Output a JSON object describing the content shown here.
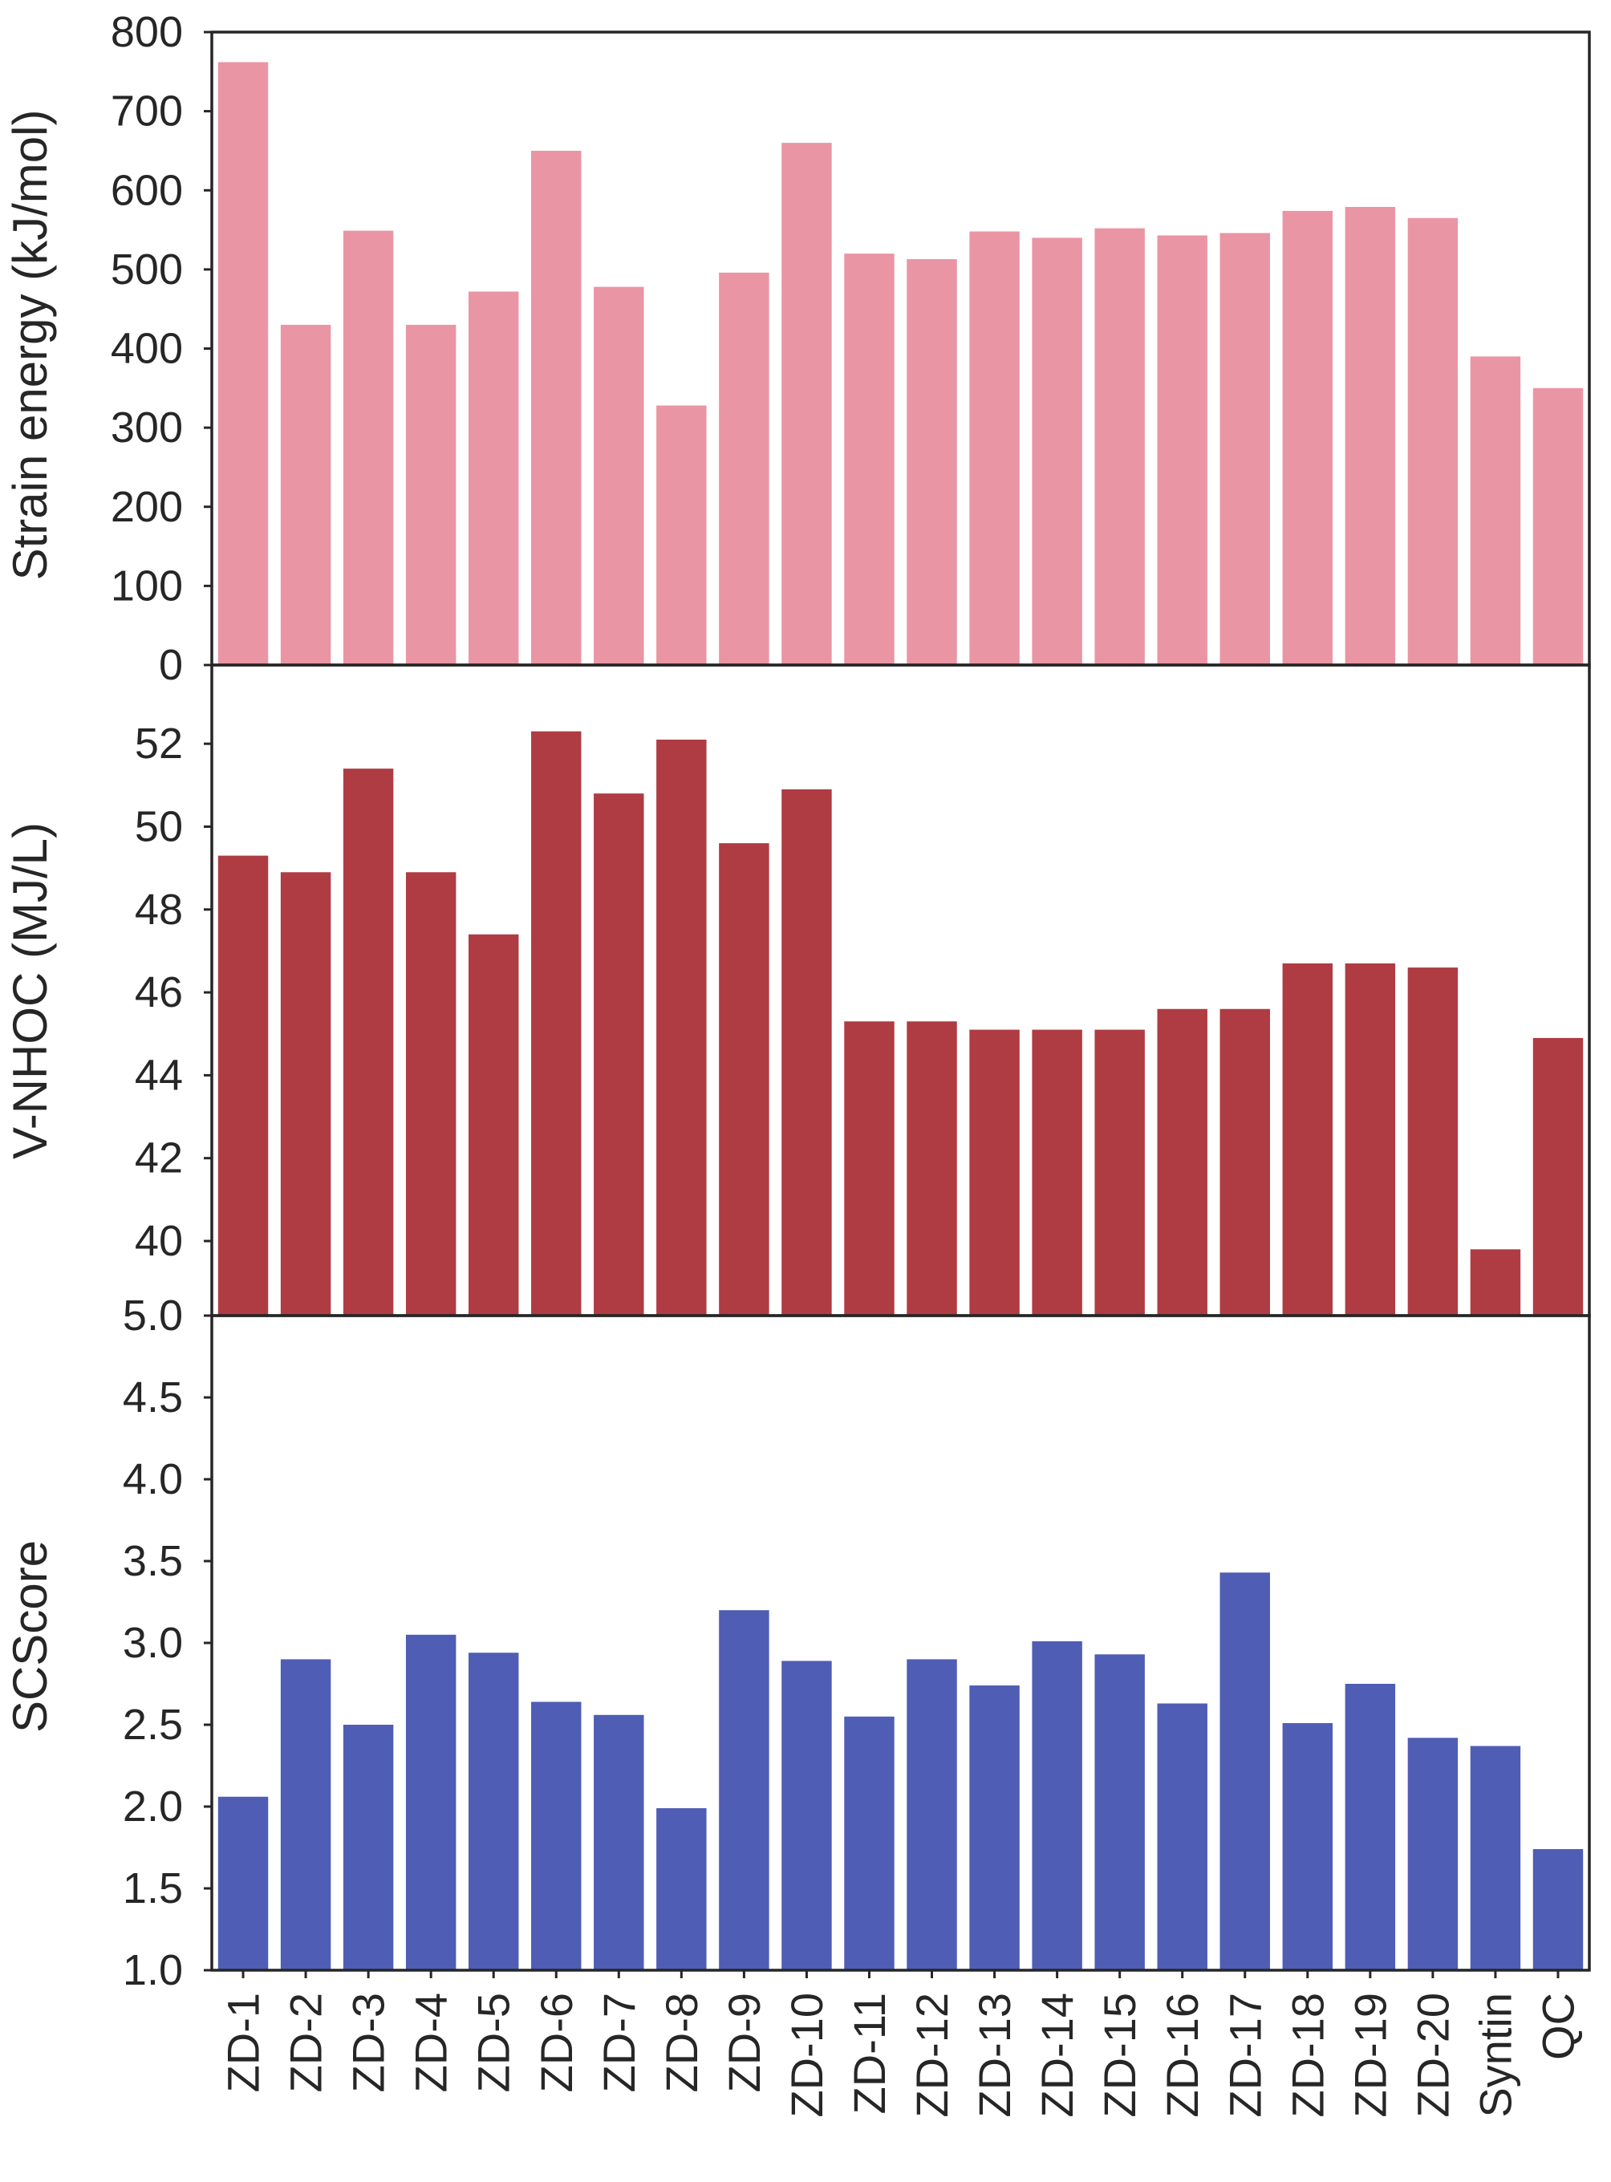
{
  "chart_data": [
    {
      "type": "bar",
      "title": "",
      "xlabel": "",
      "ylabel": "Strain energy (kJ/mol)",
      "ylim": [
        0,
        800
      ],
      "yticks": [
        "0",
        "100",
        "200",
        "300",
        "400",
        "500",
        "600",
        "700",
        "800"
      ],
      "color": "#EA95A4",
      "categories": [
        "ZD-1",
        "ZD-2",
        "ZD-3",
        "ZD-4",
        "ZD-5",
        "ZD-6",
        "ZD-7",
        "ZD-8",
        "ZD-9",
        "ZD-10",
        "ZD-11",
        "ZD-12",
        "ZD-13",
        "ZD-14",
        "ZD-15",
        "ZD-16",
        "ZD-17",
        "ZD-18",
        "ZD-19",
        "ZD-20",
        "Syntin",
        "QC"
      ],
      "values": [
        762,
        430,
        549,
        430,
        472,
        650,
        478,
        328,
        496,
        660,
        520,
        513,
        548,
        540,
        552,
        543,
        546,
        574,
        579,
        565,
        390,
        350
      ]
    },
    {
      "type": "bar",
      "title": "",
      "xlabel": "",
      "ylabel": "V-NHOC (MJ/L)",
      "ylim": [
        38.2,
        53.9
      ],
      "yticks": [
        "40",
        "42",
        "44",
        "46",
        "48",
        "50",
        "52"
      ],
      "color": "#AF3C43",
      "categories": [
        "ZD-1",
        "ZD-2",
        "ZD-3",
        "ZD-4",
        "ZD-5",
        "ZD-6",
        "ZD-7",
        "ZD-8",
        "ZD-9",
        "ZD-10",
        "ZD-11",
        "ZD-12",
        "ZD-13",
        "ZD-14",
        "ZD-15",
        "ZD-16",
        "ZD-17",
        "ZD-18",
        "ZD-19",
        "ZD-20",
        "Syntin",
        "QC"
      ],
      "values": [
        49.3,
        48.9,
        51.4,
        48.9,
        47.4,
        52.3,
        50.8,
        52.1,
        49.6,
        50.9,
        45.3,
        45.3,
        45.1,
        45.1,
        45.1,
        45.6,
        45.6,
        46.7,
        46.7,
        46.6,
        39.8,
        44.9
      ]
    },
    {
      "type": "bar",
      "title": "",
      "xlabel": "",
      "ylabel": "SCScore",
      "ylim": [
        1.0,
        5.0
      ],
      "yticks": [
        "1.0",
        "1.5",
        "2.0",
        "2.5",
        "3.0",
        "3.5",
        "4.0",
        "4.5",
        "5.0"
      ],
      "color": "#4F5DB4",
      "categories": [
        "ZD-1",
        "ZD-2",
        "ZD-3",
        "ZD-4",
        "ZD-5",
        "ZD-6",
        "ZD-7",
        "ZD-8",
        "ZD-9",
        "ZD-10",
        "ZD-11",
        "ZD-12",
        "ZD-13",
        "ZD-14",
        "ZD-15",
        "ZD-16",
        "ZD-17",
        "ZD-18",
        "ZD-19",
        "ZD-20",
        "Syntin",
        "QC"
      ],
      "values": [
        2.06,
        2.9,
        2.5,
        3.05,
        2.94,
        2.64,
        2.56,
        1.99,
        3.2,
        2.89,
        2.55,
        2.9,
        2.74,
        3.01,
        2.93,
        2.63,
        3.43,
        2.51,
        2.75,
        2.42,
        2.37,
        1.74
      ]
    }
  ]
}
